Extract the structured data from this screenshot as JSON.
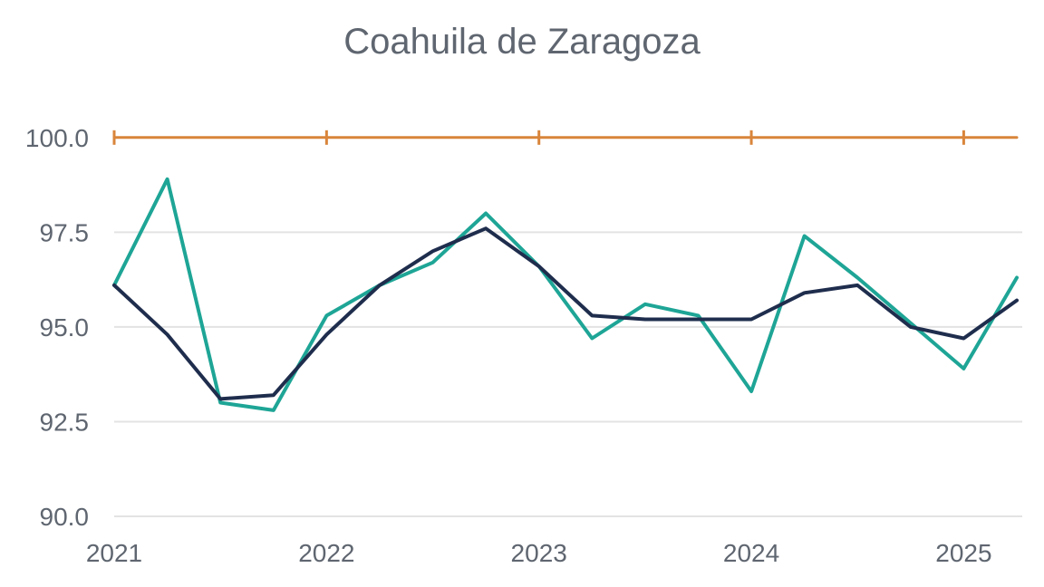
{
  "chart_data": {
    "type": "line",
    "title": "Coahuila de Zaragoza",
    "xlabel": "",
    "ylabel": "",
    "ylim": [
      90.0,
      101.0
    ],
    "xlim": [
      2021.0,
      2025.25
    ],
    "y_ticks": [
      "90.0",
      "92.5",
      "95.0",
      "97.5",
      "100.0"
    ],
    "x_ticks": [
      "2021",
      "2022",
      "2023",
      "2024",
      "2025"
    ],
    "grid": true,
    "legend": "none",
    "colors": {
      "reference": "#d9853b",
      "teal": "#1ea596",
      "navy": "#1f2d4d",
      "grid": "#e3e3e3"
    },
    "series": [
      {
        "x": [
          2021.0,
          2021.25,
          2021.5,
          2021.75,
          2022.0,
          2022.25,
          2022.5,
          2022.75,
          2023.0,
          2023.25,
          2023.5,
          2023.75,
          2024.0,
          2024.25,
          2024.5,
          2024.75,
          2025.0,
          2025.25
        ],
        "values": [
          96.1,
          98.9,
          93.0,
          92.8,
          95.3,
          96.1,
          96.7,
          98.0,
          96.6,
          94.7,
          95.6,
          95.3,
          93.3,
          97.4,
          96.3,
          95.1,
          93.9,
          96.3
        ],
        "color": "#1ea596"
      },
      {
        "x": [
          2021.0,
          2021.25,
          2021.5,
          2021.75,
          2022.0,
          2022.25,
          2022.5,
          2022.75,
          2023.0,
          2023.25,
          2023.5,
          2023.75,
          2024.0,
          2024.25,
          2024.5,
          2024.75,
          2025.0,
          2025.25
        ],
        "values": [
          96.1,
          94.8,
          93.1,
          93.2,
          94.8,
          96.1,
          97.0,
          97.6,
          96.6,
          95.3,
          95.2,
          95.2,
          95.2,
          95.9,
          96.1,
          95.0,
          94.7,
          95.7
        ],
        "color": "#1f2d4d"
      },
      {
        "x": [
          2021.0,
          2025.25
        ],
        "values": [
          100.0,
          100.0
        ],
        "color": "#d9853b",
        "markers_at": [
          2021,
          2022,
          2023,
          2024,
          2025
        ]
      }
    ]
  }
}
